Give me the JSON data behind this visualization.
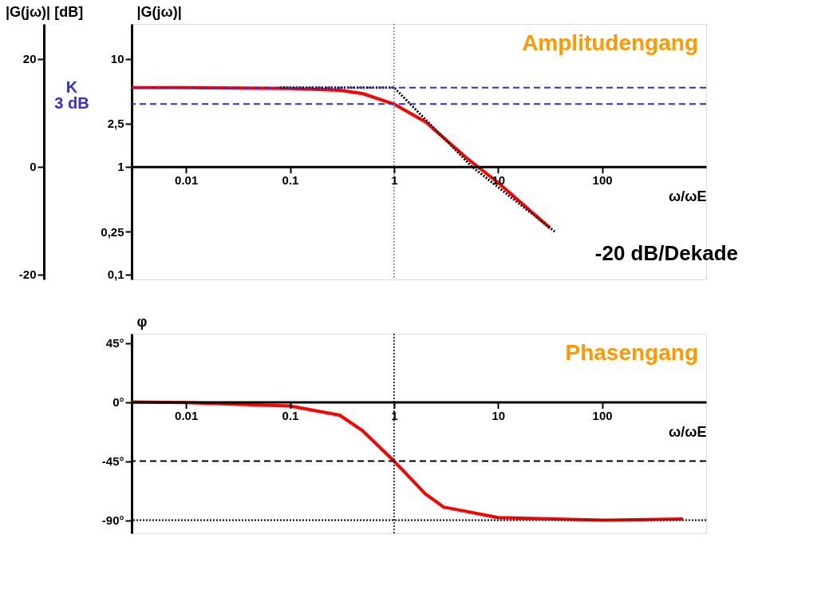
{
  "chart_data": [
    {
      "type": "line",
      "log": "xy",
      "ylabel": "|G(jω)|",
      "y2label": "|G(jω)| [dB]",
      "xlabel": "ω/ωE",
      "xlim": [
        0.003,
        1000
      ],
      "xticks": [
        0.01,
        0.1,
        1,
        10,
        100
      ],
      "ylim": [
        0.09,
        21
      ],
      "yticks": [
        {
          "value": 0.1,
          "label": "0,1"
        },
        {
          "value": 0.25,
          "label": "0,25"
        },
        1,
        {
          "value": 2.5,
          "label": "2,5"
        },
        10
      ],
      "y2lim": [
        -20.92,
        26.44
      ],
      "y2ticks": [
        -20,
        0,
        20
      ],
      "series": [
        {
          "color": "#ff0000",
          "x": [
            0.003,
            0.01,
            0.1,
            0.3,
            0.5,
            1,
            2,
            5,
            10,
            31.6
          ],
          "values": [
            5.4,
            5.4,
            5.3,
            5.1,
            4.75,
            3.8,
            2.6,
            1.2,
            0.71,
            0.27
          ]
        },
        {
          "color": "#000000",
          "line_style": "dotted",
          "x": [
            0.08,
            1,
            5.6,
            35
          ],
          "values": [
            5.4,
            5.4,
            1,
            0.25
          ]
        }
      ],
      "ref_lines": [
        {
          "axis": "y",
          "value": 5.4,
          "label": "K",
          "color": "#3333cc",
          "line_style": "dashed"
        },
        {
          "axis": "y",
          "value": 3.8,
          "label": "3 dB",
          "color": "#3333cc",
          "line_style": "dashed"
        },
        {
          "axis": "x",
          "value": 1,
          "color": "#808080",
          "line_style": "dotted"
        }
      ],
      "annotations": [
        "Amplitudengang",
        "-20 dB/Dekade"
      ]
    },
    {
      "type": "line",
      "log": "x",
      "ylabel": "φ",
      "xlabel": "ω/ωE",
      "xlim": [
        0.003,
        1000
      ],
      "xticks": [
        0.01,
        0.1,
        1,
        10,
        100
      ],
      "ylim": [
        -100,
        52
      ],
      "yticks": [
        {
          "value": -90,
          "label": "-90°"
        },
        {
          "value": -45,
          "label": "-45°"
        },
        {
          "value": 0,
          "label": "0°"
        },
        {
          "value": 45,
          "label": "45°"
        }
      ],
      "series": [
        {
          "color": "#ff0000",
          "x": [
            0.003,
            0.01,
            0.1,
            0.3,
            0.5,
            1,
            2,
            3,
            10,
            100,
            600
          ],
          "values": [
            0,
            -0.5,
            -3,
            -10,
            -22,
            -45,
            -70,
            -80,
            -88,
            -90,
            -89
          ]
        }
      ],
      "ref_lines": [
        {
          "axis": "y",
          "value": -45,
          "color": "#000000",
          "line_style": "dashed"
        },
        {
          "axis": "y",
          "value": -90,
          "color": "#000000",
          "line_style": "dotted"
        },
        {
          "axis": "x",
          "value": 1,
          "color": "#000000",
          "line_style": "dotted"
        }
      ],
      "annotations": [
        "Phasengang"
      ]
    }
  ]
}
